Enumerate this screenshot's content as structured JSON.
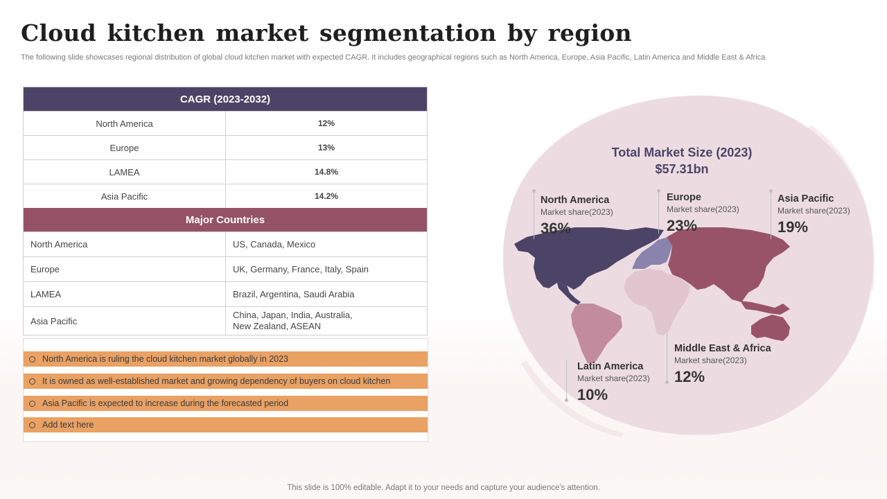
{
  "title": "Cloud kitchen market segmentation by region",
  "subtitle": "The following slide showcases regional distribution of global cloud kitchen market with expected CAGR. It includes geographical regions such as North America, Europe, Asia Pacific, Latin America and Middle East & Africa.",
  "cagr": {
    "header": "CAGR (2023-2032)",
    "rows": [
      {
        "region": "North America",
        "value": "12%"
      },
      {
        "region": "Europe",
        "value": "13%"
      },
      {
        "region": "LAMEA",
        "value": "14.8%"
      },
      {
        "region": "Asia Pacific",
        "value": "14.2%"
      }
    ]
  },
  "major": {
    "header": "Major Countries",
    "rows": [
      {
        "region": "North America",
        "countries": "US, Canada, Mexico"
      },
      {
        "region": "Europe",
        "countries": "UK, Germany, France, Italy, Spain"
      },
      {
        "region": "LAMEA",
        "countries": "Brazil, Argentina, Saudi Arabia"
      },
      {
        "region": "Asia Pacific",
        "countries": "China, Japan, India, Australia,\nNew Zealand, ASEAN"
      }
    ]
  },
  "bullets": [
    "North America is ruling the cloud kitchen market globally in 2023",
    "It is owned as well-established market and growing dependency of buyers on cloud kitchen",
    "Asia Pacific is expected to increase during the forecasted period",
    "Add text here"
  ],
  "total": {
    "label": "Total Market Size (2023)",
    "value": "$57.31bn"
  },
  "regions": {
    "north_america": {
      "name": "North America",
      "share_label": "Market share(2023)",
      "pct": "36%"
    },
    "europe": {
      "name": "Europe",
      "share_label": "Market share(2023)",
      "pct": "23%"
    },
    "asia_pacific": {
      "name": "Asia Pacific",
      "share_label": "Market share(2023)",
      "pct": "19%"
    },
    "mea": {
      "name": "Middle East & Africa",
      "share_label": "Market share(2023)",
      "pct": "12%"
    },
    "latin_america": {
      "name": "Latin America",
      "share_label": "Market share(2023)",
      "pct": "10%"
    }
  },
  "colors": {
    "cagr_header": "#4b4466",
    "major_header": "#955266",
    "bullet_fill": "#e9a164",
    "globe": "#ecdce2",
    "north_america": "#4b4466",
    "europe": "#8a83ad",
    "asia": "#985368",
    "africa": "#e1c5cf",
    "south_america": "#c38c9e",
    "australia": "#985368"
  },
  "footer": "This slide is 100% editable. Adapt it to your needs and capture your audience's attention."
}
